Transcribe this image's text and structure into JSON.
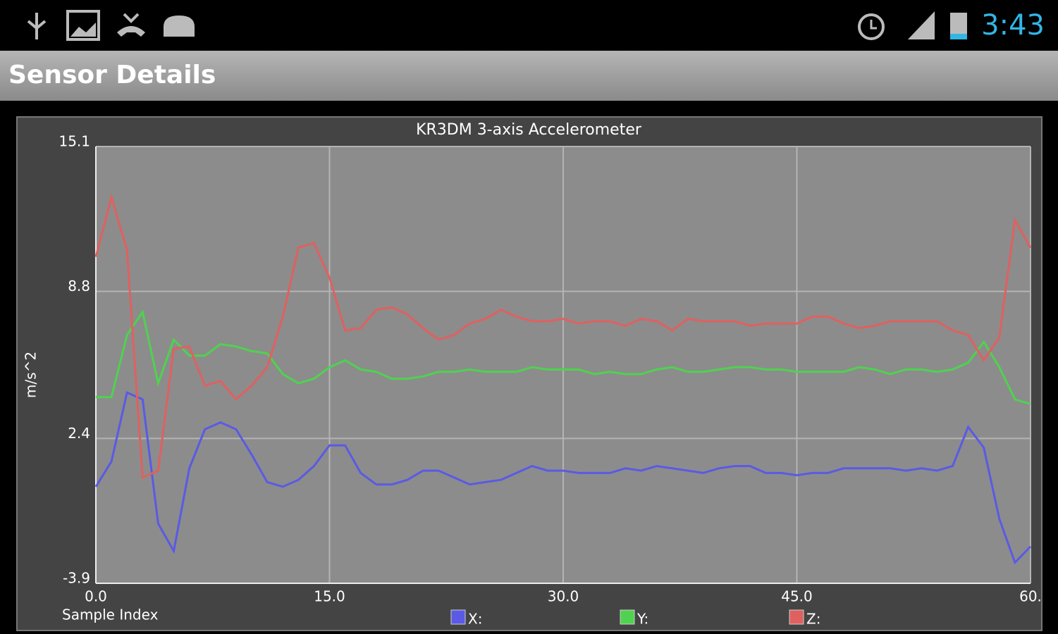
{
  "status_bar": {
    "time": "3:43"
  },
  "app_bar": {
    "title": "Sensor Details"
  },
  "chart_data": {
    "type": "line",
    "title": "KR3DM 3-axis Accelerometer",
    "x_label": "Sample Index",
    "y_label": "m/s^2",
    "x": [
      0,
      1,
      2,
      3,
      4,
      5,
      6,
      7,
      8,
      9,
      10,
      11,
      12,
      13,
      14,
      15,
      16,
      17,
      18,
      19,
      20,
      21,
      22,
      23,
      24,
      25,
      26,
      27,
      28,
      29,
      30,
      31,
      32,
      33,
      34,
      35,
      36,
      37,
      38,
      39,
      40,
      41,
      42,
      43,
      44,
      45,
      46,
      47,
      48,
      49,
      50,
      51,
      52,
      53,
      54,
      55,
      56,
      57,
      58,
      59,
      60
    ],
    "series": [
      {
        "name": "X:",
        "color": "#5a5ae6",
        "values": [
          0.3,
          1.4,
          4.4,
          4.1,
          -1.3,
          -2.5,
          1.1,
          2.8,
          3.1,
          2.8,
          1.7,
          0.5,
          0.3,
          0.6,
          1.2,
          2.1,
          2.1,
          0.9,
          0.4,
          0.4,
          0.6,
          1.0,
          1.0,
          0.7,
          0.4,
          0.5,
          0.6,
          0.9,
          1.2,
          1.0,
          1.0,
          0.9,
          0.9,
          0.9,
          1.1,
          1.0,
          1.2,
          1.1,
          1.0,
          0.9,
          1.1,
          1.2,
          1.2,
          0.9,
          0.9,
          0.8,
          0.9,
          0.9,
          1.1,
          1.1,
          1.1,
          1.1,
          1.0,
          1.1,
          1.0,
          1.2,
          2.9,
          2.0,
          -1.1,
          -3.0,
          -2.3
        ]
      },
      {
        "name": "Y:",
        "color": "#4fd24f",
        "values": [
          4.2,
          4.2,
          6.9,
          7.9,
          4.8,
          6.7,
          6.0,
          6.0,
          6.5,
          6.4,
          6.2,
          6.1,
          5.2,
          4.8,
          5.0,
          5.5,
          5.8,
          5.4,
          5.3,
          5.0,
          5.0,
          5.1,
          5.3,
          5.3,
          5.4,
          5.3,
          5.3,
          5.3,
          5.5,
          5.4,
          5.4,
          5.4,
          5.2,
          5.3,
          5.2,
          5.2,
          5.4,
          5.5,
          5.3,
          5.3,
          5.4,
          5.5,
          5.5,
          5.4,
          5.4,
          5.3,
          5.3,
          5.3,
          5.3,
          5.5,
          5.4,
          5.2,
          5.4,
          5.4,
          5.3,
          5.4,
          5.7,
          6.6,
          5.5,
          4.1,
          3.9
        ]
      },
      {
        "name": "Z:",
        "color": "#e06060",
        "values": [
          10.3,
          12.9,
          10.6,
          0.7,
          1.0,
          6.3,
          6.4,
          4.7,
          4.9,
          4.1,
          4.7,
          5.5,
          7.7,
          10.7,
          10.9,
          9.4,
          7.1,
          7.2,
          8.0,
          8.1,
          7.8,
          7.2,
          6.7,
          6.9,
          7.4,
          7.6,
          8.0,
          7.7,
          7.5,
          7.5,
          7.6,
          7.4,
          7.5,
          7.5,
          7.3,
          7.6,
          7.5,
          7.1,
          7.6,
          7.5,
          7.5,
          7.5,
          7.3,
          7.4,
          7.4,
          7.4,
          7.7,
          7.7,
          7.4,
          7.2,
          7.3,
          7.5,
          7.5,
          7.5,
          7.5,
          7.1,
          6.9,
          5.8,
          6.8,
          11.9,
          10.7
        ]
      }
    ],
    "xlim": [
      0,
      60
    ],
    "ylim": [
      -3.9,
      15.1
    ],
    "xticks": [
      {
        "value": 0,
        "label": "0.0"
      },
      {
        "value": 15,
        "label": "15.0"
      },
      {
        "value": 30,
        "label": "30.0"
      },
      {
        "value": 45,
        "label": "45.0"
      },
      {
        "value": 60,
        "label": "60."
      }
    ],
    "yticks": [
      -3.9,
      2.4,
      8.8,
      15.1
    ],
    "grid": true
  }
}
